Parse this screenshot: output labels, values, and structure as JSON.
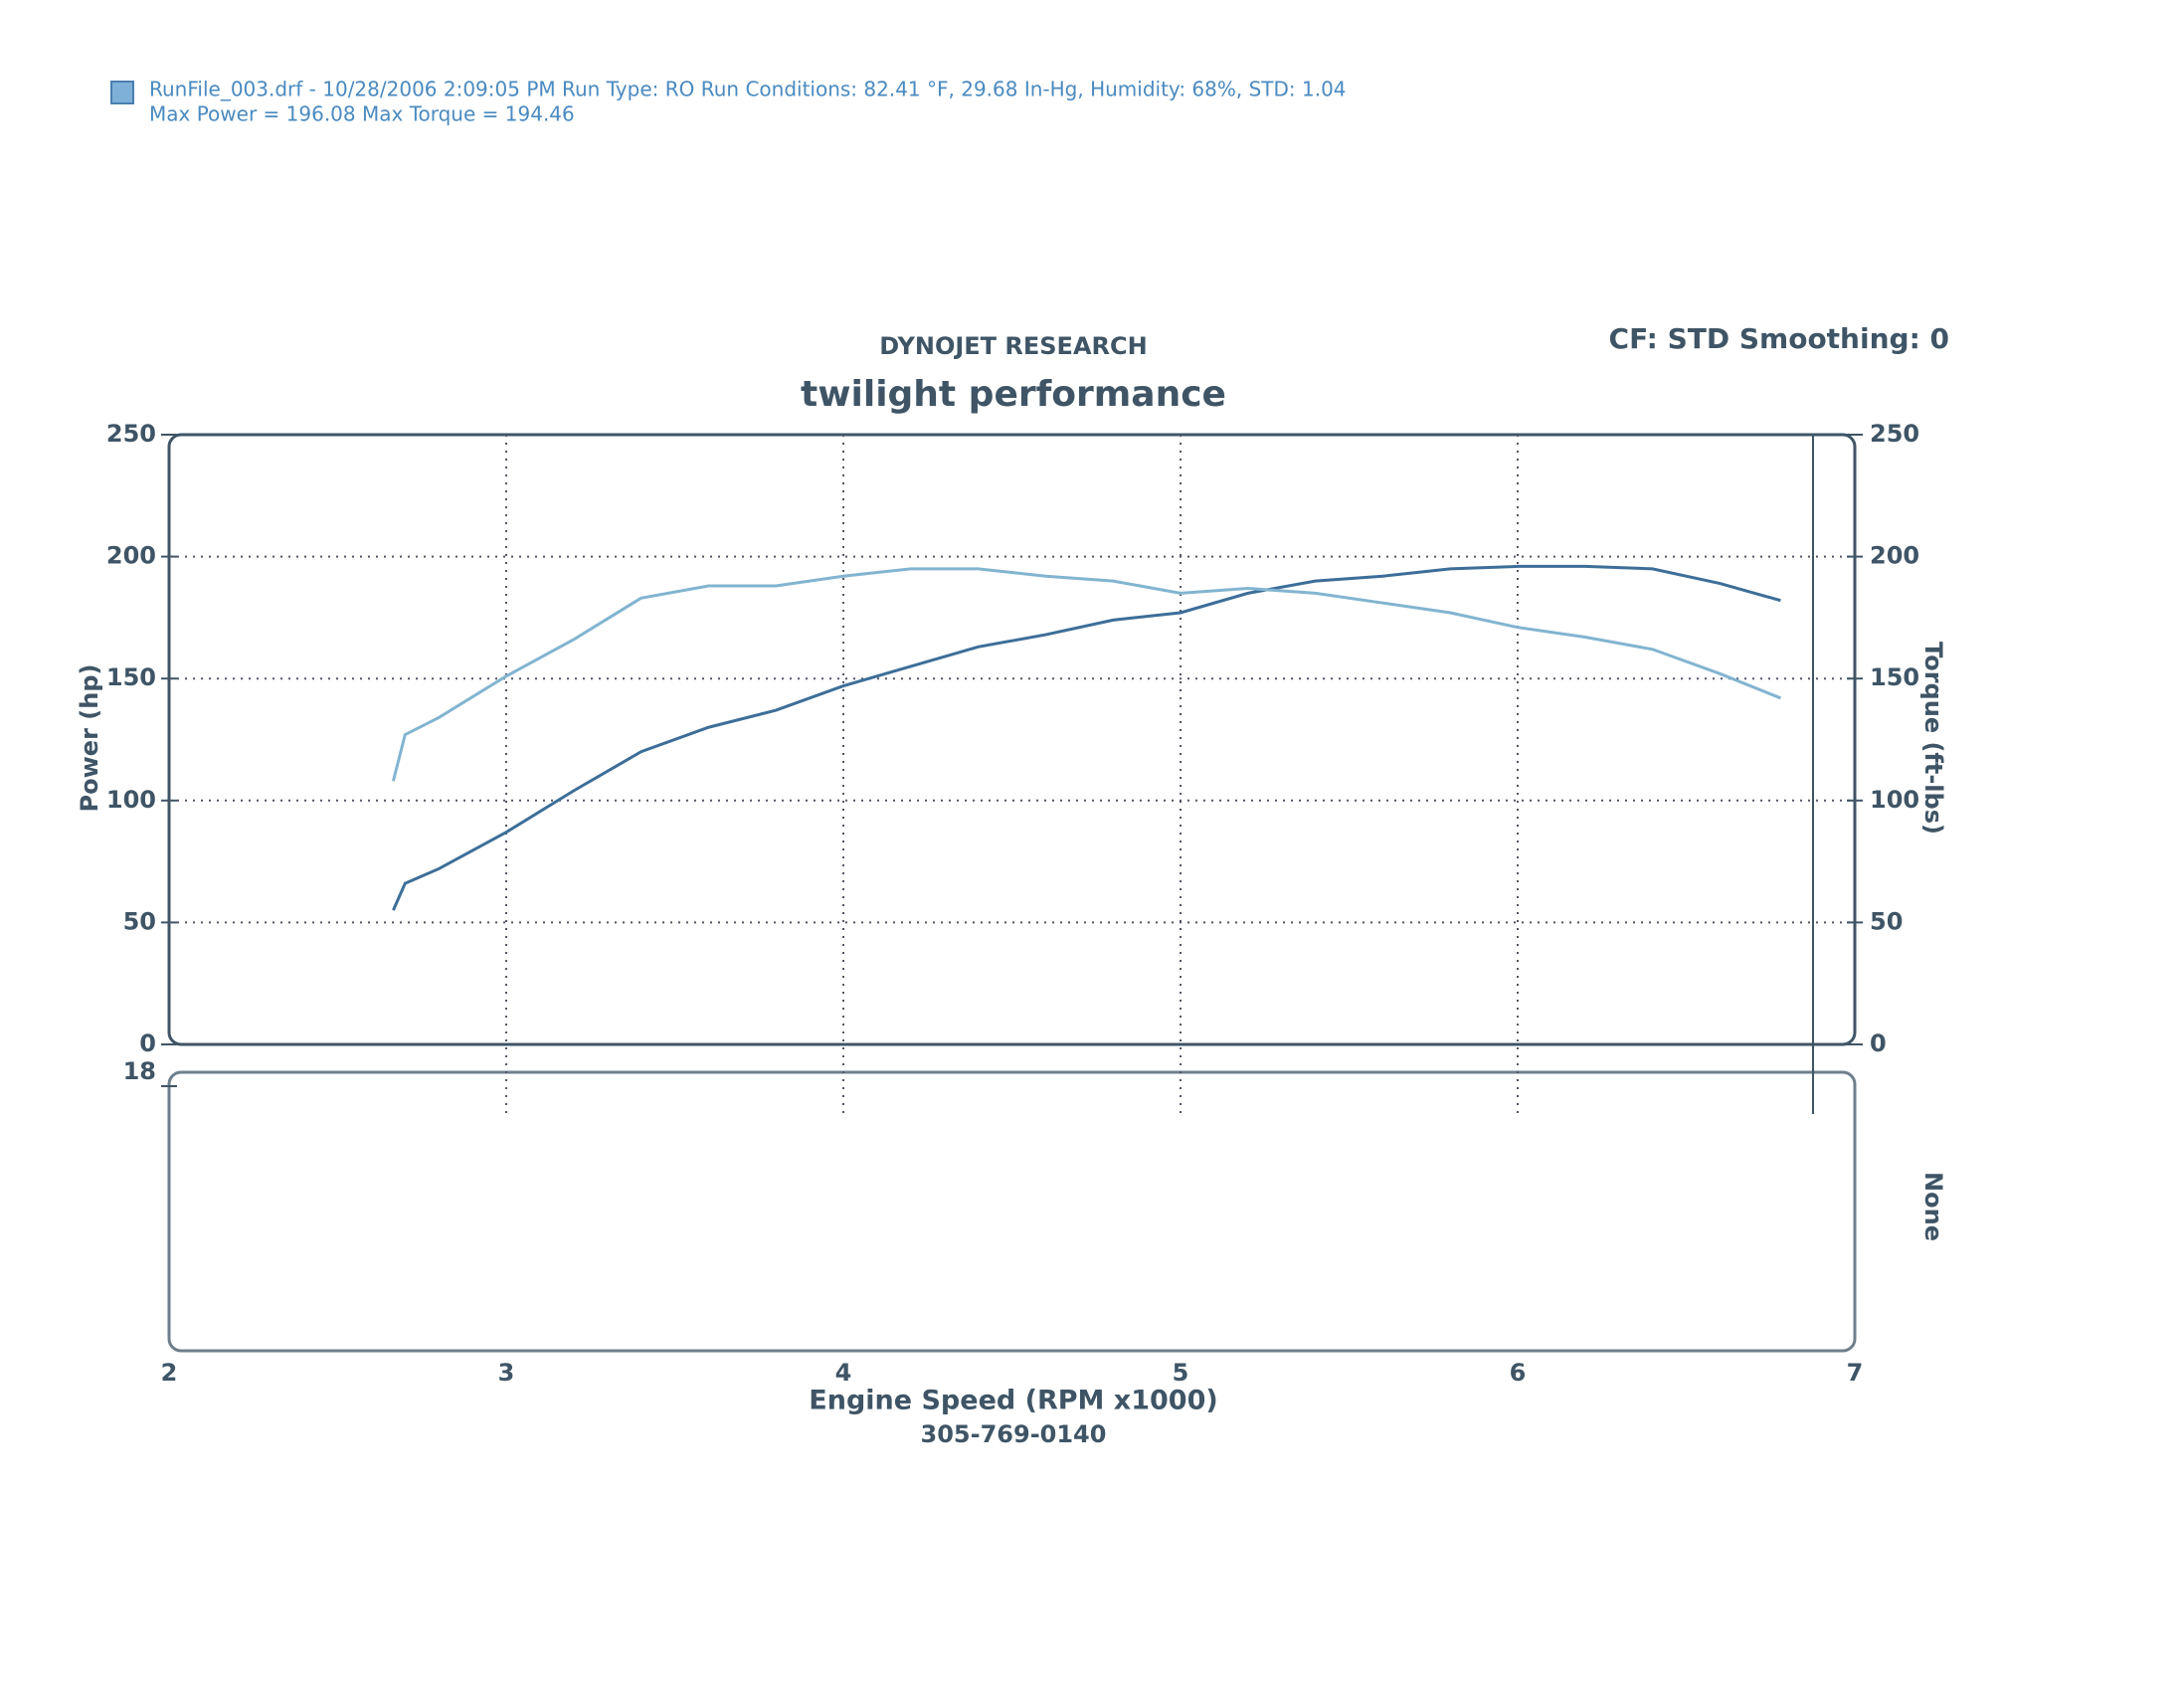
{
  "header": {
    "run_info": "RunFile_003.drf - 10/28/2006 2:09:05 PM  Run Type: RO  Run Conditions: 82.41 °F, 29.68 In-Hg,  Humidity: 68%,  STD: 1.04",
    "max_info": "Max Power = 196.08  Max Torque = 194.46"
  },
  "chart_data": {
    "type": "line",
    "title": "DYNOJET RESEARCH",
    "subtitle": "twilight performance",
    "settings_note": "CF: STD  Smoothing: 0",
    "xlabel": "Engine Speed (RPM x1000)",
    "ylabel": "Power (hp)",
    "y2label": "Torque (ft-lbs)",
    "footer": "305-769-0140",
    "x": [
      2.665,
      2.7,
      2.8,
      3.0,
      3.2,
      3.4,
      3.6,
      3.8,
      4.0,
      4.2,
      4.4,
      4.6,
      4.8,
      5.0,
      5.2,
      5.4,
      5.6,
      5.8,
      6.0,
      6.2,
      6.4,
      6.6,
      6.78
    ],
    "series": [
      {
        "name": "Power (hp)",
        "color": "#3d6e98",
        "values": [
          55,
          66,
          72,
          87,
          104,
          120,
          130,
          137,
          147,
          155,
          163,
          168,
          174,
          177,
          185,
          190,
          192,
          195,
          196,
          196,
          195,
          189,
          182
        ]
      },
      {
        "name": "Torque (ft-lbs)",
        "color": "#82b4d0",
        "axis": "y2",
        "values": [
          108,
          127,
          134,
          151,
          166,
          183,
          188,
          188,
          192,
          195,
          195,
          192,
          190,
          185,
          187,
          185,
          181,
          177,
          171,
          167,
          162,
          152,
          142
        ]
      }
    ],
    "xlim": [
      2,
      7
    ],
    "xticks": [
      2,
      3,
      4,
      5,
      6,
      7
    ],
    "ylim": [
      0,
      250
    ],
    "yticks": [
      0,
      50,
      100,
      150,
      200,
      250
    ],
    "y2lim": [
      0,
      250
    ],
    "y2ticks": [
      0,
      50,
      100,
      150,
      200,
      250
    ],
    "grid": true,
    "lower_panel": {
      "ylabel": "None",
      "yticks": [
        18
      ]
    }
  }
}
